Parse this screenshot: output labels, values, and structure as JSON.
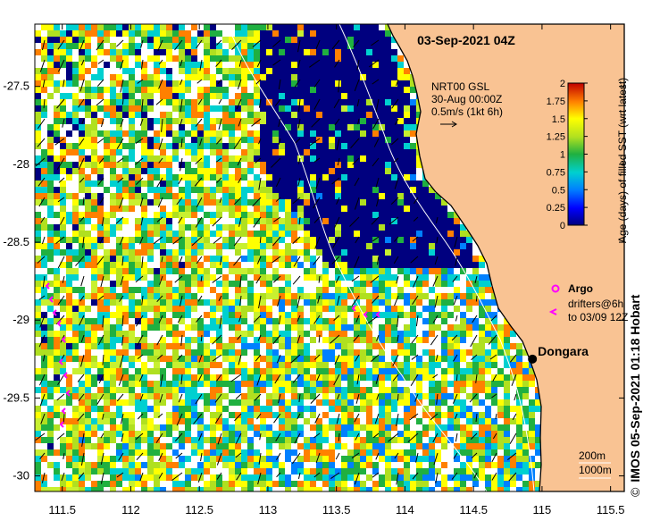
{
  "map": {
    "title": "03-Sep-2021 04Z",
    "x_ticks": [
      "111.5",
      "112",
      "112.5",
      "113",
      "113.5",
      "114",
      "114.5",
      "115",
      "115.5"
    ],
    "x_tick_values": [
      111.5,
      112,
      112.5,
      113,
      113.5,
      114,
      114.5,
      115,
      115.5
    ],
    "y_ticks": [
      "-27.5",
      "-28",
      "-28.5",
      "-29",
      "-29.5",
      "-30"
    ],
    "y_tick_values": [
      -27.5,
      -28,
      -28.5,
      -29,
      -29.5,
      -30
    ],
    "lon_range": [
      111.3,
      115.6
    ],
    "lat_range": [
      -30.1,
      -27.1
    ],
    "place_label": "Dongara",
    "place": {
      "lon": 114.93,
      "lat": -29.25
    },
    "colors": {
      "land": "#f9c393",
      "deep_blue": "#00007f",
      "coast": "#000000"
    }
  },
  "current_legend": {
    "line1": "NRT00 GSL",
    "line2": "30-Aug 00:00Z",
    "line3": "0.5m/s (1kt 6h)"
  },
  "colorbar": {
    "title": "Age (days) of filled SST (wrt latest)",
    "ticks": [
      "0",
      "0.25",
      "0.5",
      "0.75",
      "1",
      "1.25",
      "1.5",
      "1.75",
      "2"
    ],
    "tick_values": [
      0,
      0.25,
      0.5,
      0.75,
      1,
      1.25,
      1.5,
      1.75,
      2
    ],
    "range": [
      0,
      2
    ]
  },
  "argo_legend": {
    "argo_label": "Argo",
    "drifters_line1": "drifters@6h",
    "drifters_line2": "to 03/09 12Z",
    "marker_color": "#ff00ff"
  },
  "contour_legend": {
    "line1": "200m",
    "line2": "1000m"
  },
  "footer": {
    "copyright": "©",
    "credit": "IMOS 05-Sep-2021 01:18 Hobart"
  }
}
